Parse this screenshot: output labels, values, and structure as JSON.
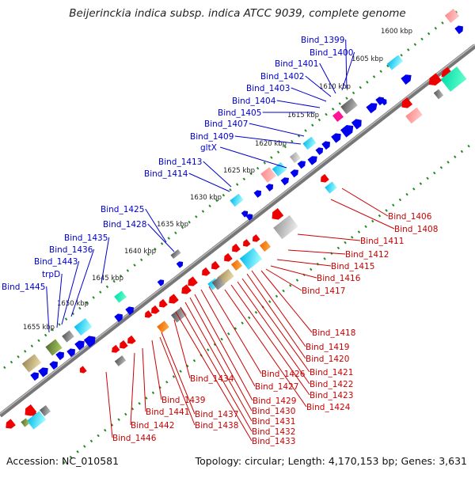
{
  "title": "Beijerinckia indica subsp. indica ATCC 9039, complete genome",
  "footer": {
    "accession": "Accession: NC_010581",
    "summary": "Topology: circular; Length: 4,170,153 bp; Genes: 3,631"
  },
  "scale_labels": [
    "1600 kbp",
    "1605 kbp",
    "1610 kbp",
    "1615 kbp",
    "1620 kbp",
    "1625 kbp",
    "1630 kbp",
    "1635 kbp",
    "1640 kbp",
    "1645 kbp",
    "1650 kbp",
    "1655 kbp"
  ],
  "upper_labels": [
    "Bind_1399",
    "Bind_1400",
    "Bind_1401",
    "Bind_1402",
    "Bind_1403",
    "Bind_1404",
    "Bind_1405",
    "Bind_1407",
    "Bind_1409",
    "gltX",
    "Bind_1413",
    "Bind_1414",
    "Bind_1425",
    "Bind_1428",
    "Bind_1435",
    "Bind_1436",
    "Bind_1443",
    "trpD",
    "Bind_1445"
  ],
  "lower_labels": [
    "Bind_1406",
    "Bind_1408",
    "Bind_1411",
    "Bind_1412",
    "Bind_1415",
    "Bind_1416",
    "Bind_1417",
    "Bind_1418",
    "Bind_1419",
    "Bind_1420",
    "Bind_1421",
    "Bind_1422",
    "Bind_1423",
    "Bind_1424",
    "Bind_1426",
    "Bind_1427",
    "Bind_1429",
    "Bind_1430",
    "Bind_1431",
    "Bind_1432",
    "Bind_1433",
    "Bind_1434",
    "Bind_1437",
    "Bind_1438",
    "Bind_1439",
    "Bind_1441",
    "Bind_1442",
    "Bind_1446"
  ],
  "colors": {
    "forward": "#0000ee",
    "reverse": "#ee0000",
    "forward_label": "#0000cc",
    "reverse_label": "#cc0000",
    "backbone": "#888888",
    "ticks": "#228b22"
  }
}
